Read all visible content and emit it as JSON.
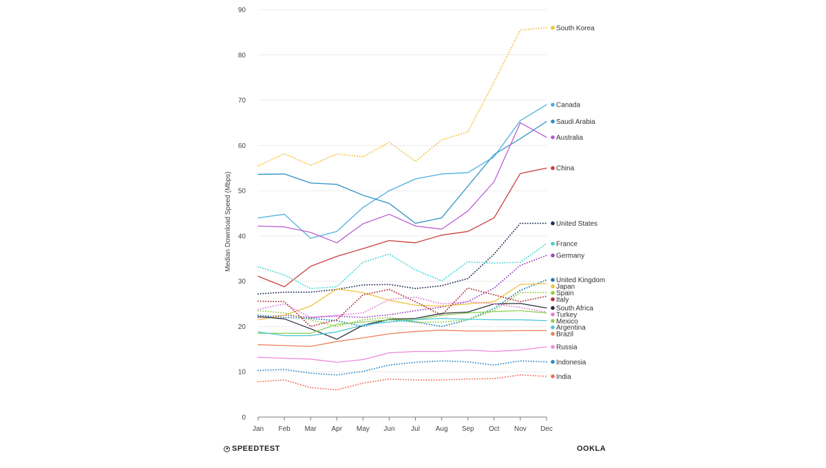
{
  "chart_data": {
    "type": "line",
    "title": "",
    "xlabel": "",
    "ylabel": "Median Download Speed (Mbps)",
    "categories": [
      "Jan",
      "Feb",
      "Mar",
      "Apr",
      "May",
      "Jun",
      "Jul",
      "Aug",
      "Sep",
      "Oct",
      "Nov",
      "Dec"
    ],
    "ylim": [
      0,
      90
    ],
    "yticks": [
      0,
      10,
      20,
      30,
      40,
      50,
      60,
      70,
      80,
      90
    ],
    "grid": true,
    "legend_placement": "right, labels at line ends",
    "series": [
      {
        "name": "South Korea",
        "style": "dotted",
        "color": "#f2c230",
        "values": [
          55.5,
          58.2,
          55.6,
          58.1,
          57.5,
          60.7,
          56.5,
          61.2,
          63.0,
          74.0,
          85.5,
          86.0
        ]
      },
      {
        "name": "Canada",
        "style": "solid",
        "color": "#4aaee0",
        "values": [
          44.0,
          44.8,
          39.5,
          41.0,
          46.3,
          50.0,
          52.6,
          53.7,
          54.0,
          57.5,
          65.5,
          69.0
        ]
      },
      {
        "name": "Saudi Arabia",
        "style": "solid",
        "color": "#2a8fc2",
        "values": [
          53.6,
          53.7,
          51.7,
          51.4,
          49.0,
          47.2,
          42.8,
          44.0,
          51.0,
          58.0,
          61.5,
          65.3
        ]
      },
      {
        "name": "Australia",
        "style": "solid",
        "color": "#b95cd0",
        "values": [
          42.2,
          42.0,
          40.8,
          38.5,
          42.7,
          44.8,
          42.2,
          41.5,
          45.5,
          52.0,
          65.0,
          61.8
        ]
      },
      {
        "name": "China",
        "style": "solid",
        "color": "#c93a3a",
        "values": [
          31.1,
          28.8,
          33.3,
          35.5,
          37.2,
          39.0,
          38.5,
          40.2,
          41.0,
          44.0,
          53.8,
          55.0
        ]
      },
      {
        "name": "United States",
        "style": "dotted",
        "color": "#1d2f57",
        "values": [
          27.2,
          27.6,
          27.6,
          28.2,
          29.2,
          29.3,
          28.4,
          29.0,
          30.6,
          36.0,
          42.8,
          42.8
        ]
      },
      {
        "name": "France",
        "style": "dotted",
        "color": "#41d4d4",
        "values": [
          33.2,
          31.4,
          28.4,
          28.8,
          34.2,
          36.0,
          32.5,
          30.1,
          34.3,
          34.0,
          34.2,
          38.3
        ]
      },
      {
        "name": "Germany",
        "style": "dotted",
        "color": "#9b47c6",
        "values": [
          22.0,
          22.5,
          22.0,
          22.3,
          22.0,
          22.6,
          23.5,
          24.3,
          25.5,
          28.5,
          33.5,
          35.7
        ]
      },
      {
        "name": "United Kingdom",
        "style": "dotted",
        "color": "#1e7db0",
        "values": [
          22.5,
          22.0,
          21.8,
          21.3,
          20.0,
          21.5,
          21.0,
          20.0,
          21.5,
          24.0,
          28.0,
          30.3
        ]
      },
      {
        "name": "Japan",
        "style": "solid",
        "color": "#efc23a",
        "values": [
          21.5,
          22.5,
          24.5,
          28.3,
          27.5,
          25.8,
          24.7,
          24.5,
          25.0,
          25.5,
          29.3,
          29.5
        ]
      },
      {
        "name": "Spain",
        "style": "dotted",
        "color": "#8fcf3c",
        "values": [
          23.5,
          23.0,
          21.5,
          20.0,
          21.5,
          22.0,
          21.0,
          21.0,
          21.5,
          23.5,
          27.5,
          27.5
        ]
      },
      {
        "name": "Italy",
        "style": "dotted",
        "color": "#b22f3a",
        "values": [
          25.6,
          25.5,
          20.0,
          21.5,
          27.0,
          28.2,
          25.5,
          22.5,
          28.5,
          27.0,
          25.5,
          26.7
        ]
      },
      {
        "name": "South Africa",
        "style": "solid",
        "color": "#2b2f3d",
        "values": [
          22.2,
          21.7,
          19.5,
          17.2,
          20.3,
          21.6,
          21.8,
          22.9,
          23.2,
          25.0,
          25.1,
          24.1
        ]
      },
      {
        "name": "Turkey",
        "style": "dotted",
        "color": "#e07ed6",
        "values": [
          23.8,
          25.0,
          22.0,
          22.5,
          23.0,
          26.0,
          26.5,
          25.0,
          25.5,
          25.0,
          24.2,
          23.2
        ]
      },
      {
        "name": "Mexico",
        "style": "solid",
        "color": "#8fd05a",
        "values": [
          18.5,
          18.5,
          18.5,
          20.5,
          21.0,
          21.5,
          21.5,
          22.5,
          23.0,
          23.3,
          23.5,
          23.0
        ]
      },
      {
        "name": "Argentina",
        "style": "solid",
        "color": "#46c8d4",
        "values": [
          18.8,
          18.0,
          18.0,
          18.8,
          20.3,
          21.0,
          21.5,
          21.8,
          21.6,
          21.5,
          21.5,
          21.3
        ]
      },
      {
        "name": "Brazil",
        "style": "solid",
        "color": "#ee7e59",
        "values": [
          16.0,
          15.8,
          15.6,
          16.7,
          17.5,
          18.4,
          18.9,
          19.2,
          19.0,
          19.0,
          19.1,
          19.1
        ]
      },
      {
        "name": "Russia",
        "style": "solid",
        "color": "#ee87dc",
        "values": [
          13.2,
          13.0,
          12.8,
          12.1,
          12.7,
          14.2,
          14.5,
          14.5,
          14.8,
          14.5,
          14.8,
          15.5
        ]
      },
      {
        "name": "Indonesia",
        "style": "dotted",
        "color": "#2e8bc9",
        "values": [
          10.3,
          10.5,
          9.7,
          9.3,
          10.1,
          11.5,
          12.1,
          12.4,
          12.2,
          11.5,
          12.4,
          12.2
        ]
      },
      {
        "name": "India",
        "style": "dotted",
        "color": "#ef6f57",
        "values": [
          7.8,
          8.2,
          6.5,
          6.0,
          7.5,
          8.4,
          8.2,
          8.2,
          8.4,
          8.5,
          9.3,
          9.0
        ]
      }
    ]
  },
  "footer": {
    "brand_left": "SPEEDTEST",
    "brand_right": "OOKLA"
  }
}
